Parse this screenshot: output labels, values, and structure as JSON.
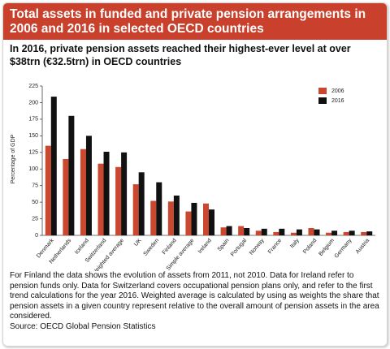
{
  "chart_data": {
    "type": "bar",
    "title": "Total assets in funded and private pension arrangements in 2006 and 2016 in selected OECD countries",
    "subtitle": "In 2016, private pension assets reached their highest-ever level at over $38trn (€32.5trn) in OECD countries",
    "y_label": "Percentage of GDP",
    "categories": [
      "Denmark",
      "Netherlands",
      "Iceland",
      "Switzerland",
      "Weighted average",
      "UK",
      "Sweden",
      "Finland",
      "Simple average",
      "Ireland",
      "Spain",
      "Portugal",
      "Norway",
      "France",
      "Italy",
      "Poland",
      "Belgium",
      "Germany",
      "Austria"
    ],
    "series": [
      {
        "name": "2006",
        "color": "#c9482f",
        "values": [
          135,
          115,
          130,
          108,
          103,
          77,
          52,
          51,
          36,
          48,
          12,
          14,
          7,
          5,
          4,
          11,
          4,
          5,
          5
        ]
      },
      {
        "name": "2016",
        "color": "#111111",
        "values": [
          209,
          180,
          150,
          126,
          125,
          95,
          80,
          60,
          49,
          39,
          14,
          11,
          10,
          10,
          9,
          9,
          7,
          7,
          6
        ]
      }
    ],
    "ylim": [
      0,
      225
    ],
    "yticks": [
      0,
      25,
      50,
      75,
      100,
      125,
      150,
      175,
      200,
      225
    ],
    "legend": "top-right",
    "notes": "For Finland the data shows the evolution of assets from 2011, not 2010. Data for Ireland refer to pension funds only. Data for Switzerland covers occupational pension plans only, and refer to the first trend calculations for the year 2016. Weighted average is calculated by using as weights the share that pension assets in a given country represent relative to the overall amount of pension assets in the area considered.",
    "source": "Source: OECD Global Pension Statistics"
  }
}
